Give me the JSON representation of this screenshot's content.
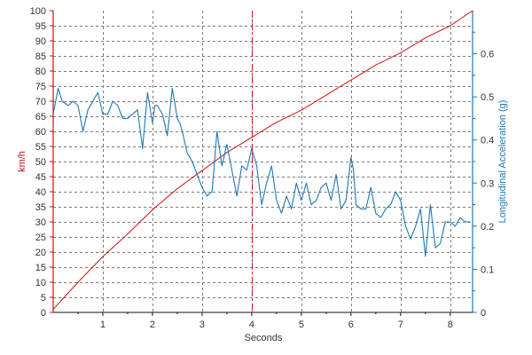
{
  "chart_data": {
    "type": "line",
    "xlabel": "Seconds",
    "ylabel_left": "km/h",
    "ylabel_right": "Longitudinal Acceleration (g)",
    "xlim": [
      0,
      8.45
    ],
    "ylim_left": [
      0,
      100
    ],
    "ylim_right": [
      0,
      0.7
    ],
    "x_ticks": [
      1,
      2,
      3,
      4,
      5,
      6,
      7,
      8
    ],
    "y_left_ticks": [
      0,
      5,
      10,
      15,
      20,
      25,
      30,
      35,
      40,
      45,
      50,
      55,
      60,
      65,
      70,
      75,
      80,
      85,
      90,
      95,
      100
    ],
    "y_right_ticks": [
      0,
      0.1,
      0.2,
      0.3,
      0.4,
      0.5,
      0.6
    ],
    "grid": true,
    "colors": {
      "speed": "#cc1111",
      "acceleration": "#1f77b4",
      "grid": "#7a7a7a",
      "cursor": "#cc1111"
    },
    "cursor_x": 4.0,
    "series": [
      {
        "axis": "left",
        "color": "#cc1111",
        "x": [
          0,
          0.5,
          1.0,
          1.5,
          2.0,
          2.5,
          3.0,
          3.5,
          4.0,
          4.5,
          5.0,
          5.5,
          6.0,
          6.5,
          7.0,
          7.5,
          8.0,
          8.45
        ],
        "values": [
          1,
          10,
          18.5,
          26,
          34,
          41,
          47,
          53,
          58,
          63,
          67,
          72,
          77,
          82,
          86,
          91,
          95,
          100
        ]
      },
      {
        "axis": "right",
        "color": "#1f77b4",
        "x": [
          0,
          0.1,
          0.18,
          0.3,
          0.4,
          0.5,
          0.6,
          0.7,
          0.8,
          0.9,
          1.0,
          1.1,
          1.2,
          1.3,
          1.4,
          1.5,
          1.6,
          1.7,
          1.8,
          1.9,
          2.0,
          2.05,
          2.1,
          2.2,
          2.3,
          2.4,
          2.5,
          2.55,
          2.6,
          2.7,
          2.8,
          2.9,
          3.0,
          3.1,
          3.2,
          3.3,
          3.4,
          3.5,
          3.6,
          3.7,
          3.8,
          3.9,
          4.0,
          4.1,
          4.2,
          4.3,
          4.4,
          4.5,
          4.6,
          4.7,
          4.8,
          4.9,
          5.0,
          5.1,
          5.2,
          5.3,
          5.4,
          5.5,
          5.6,
          5.7,
          5.8,
          5.9,
          6.0,
          6.05,
          6.1,
          6.2,
          6.3,
          6.4,
          6.5,
          6.6,
          6.7,
          6.8,
          6.9,
          7.0,
          7.1,
          7.2,
          7.3,
          7.4,
          7.5,
          7.6,
          7.7,
          7.8,
          7.9,
          8.0,
          8.1,
          8.2,
          8.3,
          8.4
        ],
        "values": [
          0.46,
          0.52,
          0.49,
          0.48,
          0.49,
          0.48,
          0.42,
          0.47,
          0.49,
          0.51,
          0.46,
          0.46,
          0.49,
          0.48,
          0.45,
          0.45,
          0.46,
          0.47,
          0.38,
          0.51,
          0.44,
          0.48,
          0.48,
          0.46,
          0.41,
          0.52,
          0.45,
          0.44,
          0.42,
          0.37,
          0.35,
          0.32,
          0.29,
          0.27,
          0.28,
          0.42,
          0.34,
          0.39,
          0.33,
          0.27,
          0.34,
          0.33,
          0.38,
          0.34,
          0.25,
          0.3,
          0.34,
          0.26,
          0.23,
          0.27,
          0.24,
          0.3,
          0.26,
          0.3,
          0.25,
          0.26,
          0.29,
          0.3,
          0.26,
          0.32,
          0.24,
          0.26,
          0.36,
          0.33,
          0.25,
          0.24,
          0.24,
          0.29,
          0.23,
          0.22,
          0.24,
          0.25,
          0.28,
          0.26,
          0.2,
          0.17,
          0.2,
          0.24,
          0.13,
          0.25,
          0.15,
          0.16,
          0.21,
          0.21,
          0.2,
          0.22,
          0.21,
          0.21
        ]
      }
    ]
  }
}
